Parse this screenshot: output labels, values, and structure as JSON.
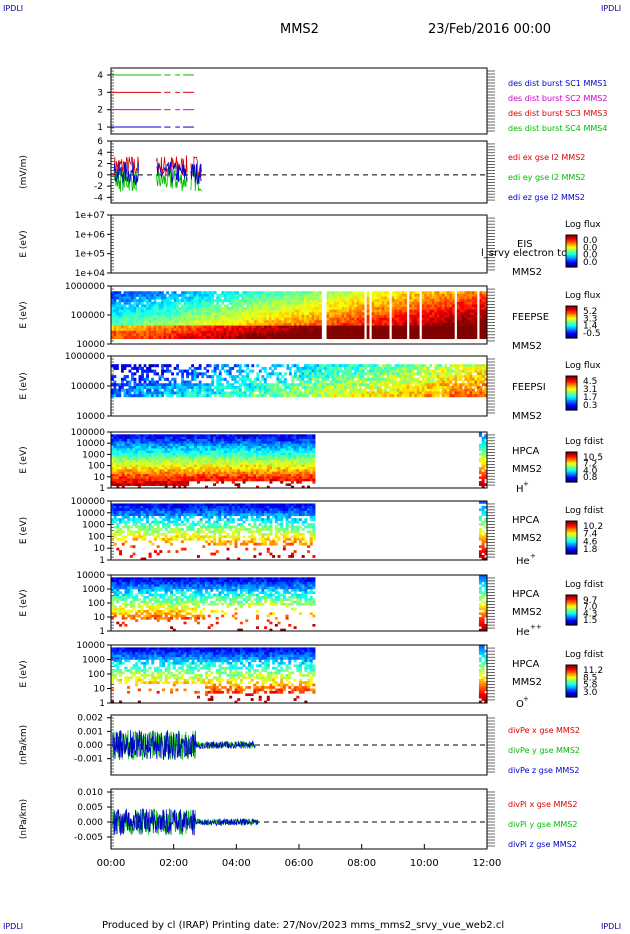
{
  "corner_label": "IPDLI",
  "header": {
    "mission": "MMS2",
    "datetime": "23/Feb/2016 00:00"
  },
  "footer": {
    "text": "Produced by cl (IRAP)   Printing date: 27/Nov/2023   mms_mms2_srvy_vue_web2.cl"
  },
  "colors": {
    "black": "#000000",
    "blue": "#0000cc",
    "magenta": "#cc00cc",
    "red": "#dd0000",
    "green": "#00bb00"
  },
  "chart_data": [
    {
      "type": "line",
      "panel": "burst",
      "ylim": [
        0.6,
        4.4
      ],
      "yticks": [
        "1",
        "2",
        "3",
        "4"
      ],
      "series": [
        {
          "name": "des dist burst SC1 MMS1",
          "color": "#0000cc",
          "y": 1,
          "segments": [
            [
              0.0,
              1.6
            ],
            [
              1.7,
              1.9
            ],
            [
              2.05,
              2.2
            ],
            [
              2.3,
              2.65
            ]
          ]
        },
        {
          "name": "des dist burst SC2 MMS2",
          "color": "#cc00cc",
          "y": 2,
          "segments": [
            [
              0.0,
              1.6
            ],
            [
              1.7,
              1.9
            ],
            [
              2.05,
              2.2
            ],
            [
              2.3,
              2.65
            ]
          ]
        },
        {
          "name": "des dist burst SC3 MMS3",
          "color": "#dd0000",
          "y": 3,
          "segments": [
            [
              0.0,
              1.6
            ],
            [
              1.7,
              1.9
            ],
            [
              2.05,
              2.2
            ],
            [
              2.3,
              2.65
            ]
          ]
        },
        {
          "name": "des dist burst SC4 MMS4",
          "color": "#00bb00",
          "y": 4,
          "segments": [
            [
              0.0,
              1.6
            ],
            [
              1.7,
              1.9
            ],
            [
              2.05,
              2.2
            ],
            [
              2.3,
              2.65
            ]
          ]
        }
      ]
    },
    {
      "type": "line",
      "panel": "edi",
      "ylabel": "(mV/m)",
      "ylim": [
        -5,
        6
      ],
      "yticks": [
        "6",
        "4",
        "2",
        "0",
        "-2",
        "-4"
      ],
      "series": [
        {
          "name": "edi ex gse l2 MMS2",
          "color": "#dd0000"
        },
        {
          "name": "edi ey gse l2 MMS2",
          "color": "#00bb00"
        },
        {
          "name": "edi ez gse l2 MMS2",
          "color": "#0000cc"
        }
      ]
    },
    {
      "type": "heatmap",
      "panel": "eis",
      "ylabel": "E (eV)",
      "yticks": [
        "1e+07",
        "1e+06",
        "1e+05",
        "1e+04"
      ],
      "labels": [
        "EIS",
        "MMS2"
      ],
      "overlay_text": "l_srvy electron to",
      "colorbar_title": "Log flux",
      "colorbar_ticks": [
        "0.0",
        "0.0",
        "0.0",
        "0.0"
      ]
    },
    {
      "type": "heatmap",
      "panel": "feepse",
      "ylabel": "E (eV)",
      "yticks": [
        "1000000",
        "100000",
        "10000"
      ],
      "labels": [
        "FEEPSE",
        "MMS2"
      ],
      "colorbar_title": "Log flux",
      "colorbar_ticks": [
        "5.2",
        "3.3",
        "1.4",
        "-0.5"
      ]
    },
    {
      "type": "heatmap",
      "panel": "feepsi",
      "ylabel": "E (eV)",
      "yticks": [
        "1000000",
        "100000",
        "10000"
      ],
      "labels": [
        "FEEPSI",
        "MMS2"
      ],
      "colorbar_title": "Log flux",
      "colorbar_ticks": [
        "4.5",
        "3.1",
        "1.7",
        "0.3"
      ]
    },
    {
      "type": "heatmap",
      "panel": "hpca_h",
      "ylabel": "E (eV)",
      "yticks": [
        "100000",
        "10000",
        "1000",
        "100",
        "10",
        "1"
      ],
      "labels": [
        "HPCA",
        "MMS2"
      ],
      "species": "H",
      "species_sup": "+",
      "colorbar_title": "Log fdist",
      "colorbar_ticks": [
        "10.5",
        "7.2",
        "4.0",
        "0.8"
      ]
    },
    {
      "type": "heatmap",
      "panel": "hpca_he",
      "ylabel": "E (eV)",
      "yticks": [
        "100000",
        "10000",
        "1000",
        "100",
        "10",
        "1"
      ],
      "labels": [
        "HPCA",
        "MMS2"
      ],
      "species": "He",
      "species_sup": "+",
      "colorbar_title": "Log fdist",
      "colorbar_ticks": [
        "10.2",
        "7.4",
        "4.6",
        "1.8"
      ]
    },
    {
      "type": "heatmap",
      "panel": "hpca_hepp",
      "ylabel": "E (eV)",
      "yticks": [
        "10000",
        "1000",
        "100",
        "10",
        "1"
      ],
      "labels": [
        "HPCA",
        "MMS2"
      ],
      "species": "He",
      "species_sup": "++",
      "colorbar_title": "Log fdist",
      "colorbar_ticks": [
        "9.7",
        "7.0",
        "4.3",
        "1.5"
      ]
    },
    {
      "type": "heatmap",
      "panel": "hpca_o",
      "ylabel": "E (eV)",
      "yticks": [
        "10000",
        "1000",
        "100",
        "10",
        "1"
      ],
      "labels": [
        "HPCA",
        "MMS2"
      ],
      "species": "O",
      "species_sup": "+",
      "colorbar_title": "Log fdist",
      "colorbar_ticks": [
        "11.2",
        "8.5",
        "5.8",
        "3.0"
      ]
    },
    {
      "type": "line",
      "panel": "divpe",
      "ylabel": "(nPa/km)",
      "ylim": [
        -0.0022,
        0.0022
      ],
      "yticks": [
        "0.002",
        "0.001",
        "0.000",
        "-0.001"
      ],
      "series": [
        {
          "name": "divPe x gse MMS2",
          "color": "#dd0000"
        },
        {
          "name": "divPe y gse MMS2",
          "color": "#00bb00"
        },
        {
          "name": "divPe z gse MMS2",
          "color": "#0000cc"
        }
      ]
    },
    {
      "type": "line",
      "panel": "divpi",
      "ylabel": "(nPa/km)",
      "ylim": [
        -0.009,
        0.011
      ],
      "yticks": [
        "0.010",
        "0.005",
        "0.000",
        "-0.005"
      ],
      "series": [
        {
          "name": "divPi x gse MMS2",
          "color": "#dd0000"
        },
        {
          "name": "divPi y gse MMS2",
          "color": "#00bb00"
        },
        {
          "name": "divPi z gse MMS2",
          "color": "#0000cc"
        }
      ]
    }
  ],
  "time_axis": {
    "ticks": [
      "00:00",
      "02:00",
      "04:00",
      "06:00",
      "08:00",
      "10:00",
      "12:00"
    ],
    "range_hours": [
      0,
      12
    ]
  }
}
